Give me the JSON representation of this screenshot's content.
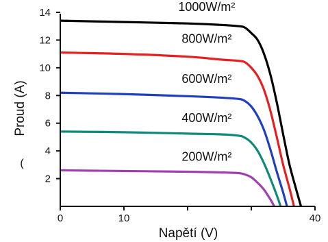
{
  "chart_data": {
    "type": "line",
    "title": "",
    "xlabel": "Napětí (V)",
    "ylabel": "Proud (A)",
    "xlim": [
      0,
      40
    ],
    "ylim": [
      0,
      14
    ],
    "x_ticks": [
      0,
      10,
      20,
      30,
      40
    ],
    "x_tick_labels": [
      "0",
      "10",
      "",
      "",
      "40"
    ],
    "y_ticks": [
      2,
      4,
      6,
      8,
      10,
      12,
      14
    ],
    "y_tick_labels": [
      "2",
      "4",
      "6",
      "8",
      "10",
      "12",
      "14"
    ],
    "stray_text": "(",
    "grid": false,
    "legend": "none",
    "series": [
      {
        "name": "1000W/m²",
        "color": "#000000",
        "points": [
          [
            0,
            13.4
          ],
          [
            10,
            13.3
          ],
          [
            20,
            13.2
          ],
          [
            25,
            13.1
          ],
          [
            28,
            13.0
          ],
          [
            29,
            12.9
          ],
          [
            30,
            12.5
          ],
          [
            31,
            12.0
          ],
          [
            32,
            11.0
          ],
          [
            33,
            9.5
          ],
          [
            34,
            7.5
          ],
          [
            35,
            5.2
          ],
          [
            36,
            3.0
          ],
          [
            37,
            1.3
          ],
          [
            37.8,
            0
          ]
        ]
      },
      {
        "name": "800W/m²",
        "color": "#e62020",
        "points": [
          [
            0,
            11.1
          ],
          [
            10,
            11.0
          ],
          [
            20,
            10.8
          ],
          [
            25,
            10.6
          ],
          [
            28,
            10.5
          ],
          [
            29,
            10.4
          ],
          [
            30,
            10.0
          ],
          [
            31,
            9.4
          ],
          [
            32,
            8.4
          ],
          [
            33,
            6.9
          ],
          [
            34,
            5.0
          ],
          [
            35,
            3.0
          ],
          [
            36,
            1.3
          ],
          [
            36.7,
            0
          ]
        ]
      },
      {
        "name": "600W/m²",
        "color": "#1f3fbf",
        "points": [
          [
            0,
            8.2
          ],
          [
            10,
            8.1
          ],
          [
            20,
            7.95
          ],
          [
            25,
            7.85
          ],
          [
            28,
            7.75
          ],
          [
            29,
            7.6
          ],
          [
            30,
            7.2
          ],
          [
            31,
            6.5
          ],
          [
            32,
            5.5
          ],
          [
            33,
            4.1
          ],
          [
            34,
            2.5
          ],
          [
            35,
            1.0
          ],
          [
            35.6,
            0
          ]
        ]
      },
      {
        "name": "400W/m²",
        "color": "#0f8a7a",
        "points": [
          [
            0,
            5.4
          ],
          [
            10,
            5.35
          ],
          [
            20,
            5.25
          ],
          [
            25,
            5.2
          ],
          [
            28,
            5.1
          ],
          [
            29,
            4.95
          ],
          [
            30,
            4.6
          ],
          [
            31,
            4.0
          ],
          [
            32,
            3.1
          ],
          [
            33,
            2.0
          ],
          [
            34,
            0.8
          ],
          [
            34.6,
            0
          ]
        ]
      },
      {
        "name": "200W/m²",
        "color": "#a040b0",
        "points": [
          [
            0,
            2.6
          ],
          [
            10,
            2.55
          ],
          [
            20,
            2.5
          ],
          [
            25,
            2.45
          ],
          [
            28,
            2.4
          ],
          [
            29,
            2.3
          ],
          [
            30,
            2.1
          ],
          [
            31,
            1.7
          ],
          [
            32,
            1.2
          ],
          [
            33,
            0.5
          ],
          [
            33.6,
            0
          ]
        ]
      }
    ]
  }
}
